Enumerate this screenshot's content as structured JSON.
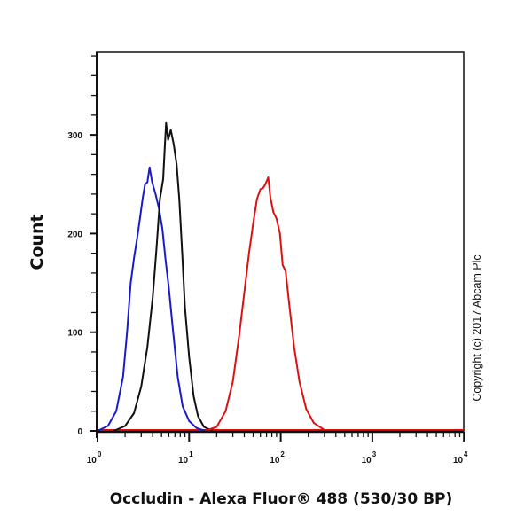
{
  "chart_data": {
    "type": "line",
    "subtype": "flow-cytometry-histogram",
    "title": "",
    "xlabel": "Occludin - Alexa Fluor® 488 (530/30 BP)",
    "ylabel": "Count",
    "xscale": "log",
    "xlim": [
      1,
      10000
    ],
    "ylim": [
      0,
      340
    ],
    "x_ticks": [
      {
        "base": "10",
        "exp": "0",
        "value": 1
      },
      {
        "base": "10",
        "exp": "1",
        "value": 10
      },
      {
        "base": "10",
        "exp": "2",
        "value": 100
      },
      {
        "base": "10",
        "exp": "3",
        "value": 1000
      },
      {
        "base": "10",
        "exp": "4",
        "value": 10000
      }
    ],
    "y_ticks": [
      {
        "label": "0",
        "value": 0
      },
      {
        "label": "100",
        "value": 100
      },
      {
        "label": "200",
        "value": 200
      },
      {
        "label": "300",
        "value": 300
      }
    ],
    "grid": false,
    "legend": null,
    "annotation": "Copyright (c) 2017 Abcam Plc",
    "series": [
      {
        "name": "blue",
        "color": "#1a1acc",
        "peak": {
          "x": 3.7,
          "y": 267
        },
        "points": [
          [
            1,
            0
          ],
          [
            1.3,
            5
          ],
          [
            1.6,
            20
          ],
          [
            1.9,
            55
          ],
          [
            2.1,
            100
          ],
          [
            2.3,
            150
          ],
          [
            2.5,
            175
          ],
          [
            2.7,
            195
          ],
          [
            2.9,
            215
          ],
          [
            3.1,
            235
          ],
          [
            3.3,
            250
          ],
          [
            3.5,
            252
          ],
          [
            3.7,
            267
          ],
          [
            3.95,
            252
          ],
          [
            4.3,
            240
          ],
          [
            4.7,
            225
          ],
          [
            5.1,
            205
          ],
          [
            5.5,
            175
          ],
          [
            6.0,
            145
          ],
          [
            6.7,
            100
          ],
          [
            7.5,
            55
          ],
          [
            8.5,
            25
          ],
          [
            10,
            10
          ],
          [
            12,
            3
          ],
          [
            15,
            0
          ]
        ]
      },
      {
        "name": "black",
        "color": "#111111",
        "peak": {
          "x": 5.6,
          "y": 312
        },
        "points": [
          [
            1.5,
            0
          ],
          [
            2.0,
            5
          ],
          [
            2.5,
            18
          ],
          [
            3.0,
            45
          ],
          [
            3.5,
            85
          ],
          [
            4.0,
            135
          ],
          [
            4.4,
            185
          ],
          [
            4.8,
            235
          ],
          [
            5.2,
            255
          ],
          [
            5.4,
            285
          ],
          [
            5.6,
            312
          ],
          [
            5.9,
            295
          ],
          [
            6.3,
            305
          ],
          [
            6.8,
            290
          ],
          [
            7.3,
            270
          ],
          [
            7.8,
            235
          ],
          [
            8.4,
            180
          ],
          [
            9.0,
            125
          ],
          [
            10,
            75
          ],
          [
            11.2,
            35
          ],
          [
            12.5,
            15
          ],
          [
            14.5,
            4
          ],
          [
            18,
            0
          ]
        ]
      },
      {
        "name": "red",
        "color": "#dd1111",
        "peak": {
          "x": 73,
          "y": 257
        },
        "points": [
          [
            15,
            0
          ],
          [
            20,
            4
          ],
          [
            25,
            20
          ],
          [
            30,
            50
          ],
          [
            35,
            95
          ],
          [
            40,
            140
          ],
          [
            45,
            180
          ],
          [
            50,
            210
          ],
          [
            55,
            235
          ],
          [
            60,
            245
          ],
          [
            64,
            246
          ],
          [
            68,
            250
          ],
          [
            73,
            257
          ],
          [
            77,
            237
          ],
          [
            83,
            222
          ],
          [
            90,
            215
          ],
          [
            98,
            200
          ],
          [
            105,
            168
          ],
          [
            113,
            162
          ],
          [
            125,
            125
          ],
          [
            140,
            85
          ],
          [
            160,
            50
          ],
          [
            190,
            22
          ],
          [
            230,
            8
          ],
          [
            300,
            1
          ],
          [
            350,
            0
          ]
        ]
      }
    ]
  }
}
